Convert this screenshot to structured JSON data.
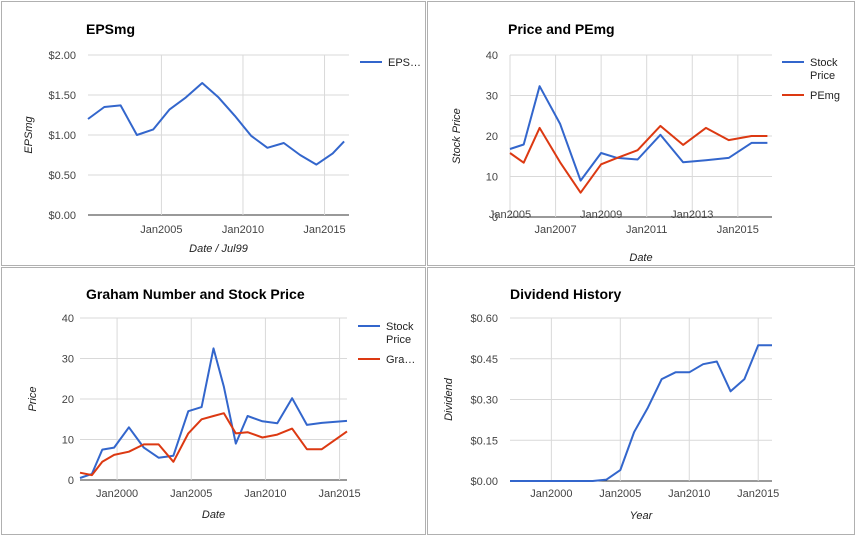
{
  "chart_data": [
    {
      "type": "line",
      "title": "EPSmg",
      "xlabel": "Date / Jul99",
      "ylabel": "EPSmg",
      "x_ticks": [
        {
          "label": "Jan2005",
          "value": 2005.0
        },
        {
          "label": "Jan2010",
          "value": 2010.0
        },
        {
          "label": "Jan2015",
          "value": 2015.0
        }
      ],
      "y_ticks": [
        {
          "label": "$0.00",
          "value": 0
        },
        {
          "label": "$0.50",
          "value": 0.5
        },
        {
          "label": "$1.00",
          "value": 1.0
        },
        {
          "label": "$1.50",
          "value": 1.5
        },
        {
          "label": "$2.00",
          "value": 2.0
        }
      ],
      "xlim": [
        2000.5,
        2016.5
      ],
      "ylim": [
        0,
        2.0
      ],
      "series": [
        {
          "name": "EPS…",
          "color": "#3366cc",
          "x": [
            2000.5,
            2001.5,
            2002.5,
            2003.5,
            2004.5,
            2005.5,
            2006.5,
            2007.5,
            2008.5,
            2009.5,
            2010.5,
            2011.5,
            2012.5,
            2013.5,
            2014.5,
            2015.5,
            2016.2
          ],
          "values": [
            1.2,
            1.35,
            1.37,
            1.0,
            1.07,
            1.32,
            1.47,
            1.65,
            1.47,
            1.24,
            0.99,
            0.84,
            0.9,
            0.75,
            0.63,
            0.77,
            0.92
          ]
        }
      ],
      "legend": "right"
    },
    {
      "type": "line",
      "title": "Price and PEmg",
      "xlabel": "Date",
      "ylabel": "Stock Price",
      "x_ticks": [
        {
          "label": "Jan2005",
          "value": 2005
        },
        {
          "label": "Jan2007",
          "value": 2007
        },
        {
          "label": "Jan2009",
          "value": 2009
        },
        {
          "label": "Jan2011",
          "value": 2011
        },
        {
          "label": "Jan2013",
          "value": 2013
        },
        {
          "label": "Jan2015",
          "value": 2015
        }
      ],
      "y_ticks": [
        {
          "label": "0",
          "value": 0
        },
        {
          "label": "10",
          "value": 10
        },
        {
          "label": "20",
          "value": 20
        },
        {
          "label": "30",
          "value": 30
        },
        {
          "label": "40",
          "value": 40
        }
      ],
      "xlim": [
        2005,
        2016.5
      ],
      "ylim": [
        0,
        40
      ],
      "series": [
        {
          "name": "Stock Price",
          "legend_lines": [
            "Stock",
            "Price"
          ],
          "color": "#3366cc",
          "x": [
            2005.0,
            2005.6,
            2006.3,
            2007.2,
            2008.1,
            2009.0,
            2009.7,
            2010.6,
            2011.6,
            2012.6,
            2013.6,
            2014.6,
            2015.6,
            2016.3
          ],
          "values": [
            16.8,
            17.9,
            32.3,
            23.0,
            9.0,
            15.8,
            14.6,
            14.2,
            20.3,
            13.5,
            14.0,
            14.6,
            18.3,
            18.3
          ]
        },
        {
          "name": "PEmg",
          "legend_lines": [
            "PEmg"
          ],
          "color": "#dc3912",
          "x": [
            2005.0,
            2005.6,
            2006.3,
            2007.2,
            2008.1,
            2009.0,
            2009.7,
            2010.6,
            2011.6,
            2012.6,
            2013.6,
            2014.6,
            2015.6,
            2016.3
          ],
          "values": [
            15.8,
            13.4,
            22.0,
            13.5,
            6.0,
            13.0,
            14.6,
            16.5,
            22.5,
            17.8,
            22.0,
            19.0,
            20.0,
            20.0
          ]
        }
      ],
      "legend": "right"
    },
    {
      "type": "line",
      "title": "Graham Number and Stock Price",
      "xlabel": "Date",
      "ylabel": "Price",
      "x_ticks": [
        {
          "label": "Jan2000",
          "value": 2000
        },
        {
          "label": "Jan2005",
          "value": 2005
        },
        {
          "label": "Jan2010",
          "value": 2010
        },
        {
          "label": "Jan2015",
          "value": 2015
        }
      ],
      "y_ticks": [
        {
          "label": "0",
          "value": 0
        },
        {
          "label": "10",
          "value": 10
        },
        {
          "label": "20",
          "value": 20
        },
        {
          "label": "30",
          "value": 30
        },
        {
          "label": "40",
          "value": 40
        }
      ],
      "xlim": [
        1997.5,
        2015.5
      ],
      "ylim": [
        0,
        40
      ],
      "series": [
        {
          "name": "Stock Price",
          "legend_lines": [
            "Stock",
            "Price"
          ],
          "color": "#3366cc",
          "x": [
            1997.5,
            1998.3,
            1999.0,
            1999.8,
            2000.8,
            2001.8,
            2002.8,
            2003.8,
            2004.8,
            2005.7,
            2006.5,
            2007.2,
            2008.0,
            2008.8,
            2009.8,
            2010.8,
            2011.8,
            2012.8,
            2013.8,
            2015.5
          ],
          "values": [
            0.5,
            1.5,
            7.5,
            8.0,
            13.0,
            8.0,
            5.5,
            6.0,
            17.0,
            18.0,
            32.5,
            23.0,
            9.0,
            15.8,
            14.5,
            14.0,
            20.2,
            13.6,
            14.1,
            14.6
          ]
        },
        {
          "name": "Gra…",
          "legend_lines": [
            "Gra…"
          ],
          "color": "#dc3912",
          "x": [
            1997.5,
            1998.3,
            1999.0,
            1999.8,
            2000.8,
            2001.8,
            2002.8,
            2003.8,
            2004.8,
            2005.7,
            2006.5,
            2007.2,
            2008.0,
            2008.8,
            2009.8,
            2010.8,
            2011.8,
            2012.8,
            2013.8,
            2015.5
          ],
          "values": [
            1.8,
            1.2,
            4.5,
            6.2,
            7.0,
            8.8,
            8.8,
            4.5,
            11.5,
            15.0,
            15.8,
            16.5,
            11.5,
            11.8,
            10.5,
            11.2,
            12.7,
            7.6,
            7.6,
            12.0
          ]
        }
      ],
      "legend": "right"
    },
    {
      "type": "line",
      "title": "Dividend History",
      "xlabel": "Year",
      "ylabel": "Dividend",
      "x_ticks": [
        {
          "label": "Jan2000",
          "value": 2000
        },
        {
          "label": "Jan2005",
          "value": 2005
        },
        {
          "label": "Jan2010",
          "value": 2010
        },
        {
          "label": "Jan2015",
          "value": 2015
        }
      ],
      "y_ticks": [
        {
          "label": "$0.00",
          "value": 0
        },
        {
          "label": "$0.15",
          "value": 0.15
        },
        {
          "label": "$0.30",
          "value": 0.3
        },
        {
          "label": "$0.45",
          "value": 0.45
        },
        {
          "label": "$0.60",
          "value": 0.6
        }
      ],
      "xlim": [
        1997,
        2016
      ],
      "ylim": [
        0,
        0.6
      ],
      "series": [
        {
          "name": "Dividend",
          "color": "#3366cc",
          "x": [
            1997,
            1998,
            1999,
            2000,
            2001,
            2002,
            2003,
            2004,
            2005,
            2006,
            2007,
            2008,
            2009,
            2010,
            2011,
            2012,
            2013,
            2014,
            2015,
            2016
          ],
          "values": [
            0,
            0,
            0,
            0,
            0,
            0,
            0,
            0.005,
            0.04,
            0.18,
            0.27,
            0.375,
            0.4,
            0.4,
            0.43,
            0.44,
            0.33,
            0.375,
            0.5,
            0.5
          ]
        }
      ],
      "legend": "none"
    }
  ]
}
